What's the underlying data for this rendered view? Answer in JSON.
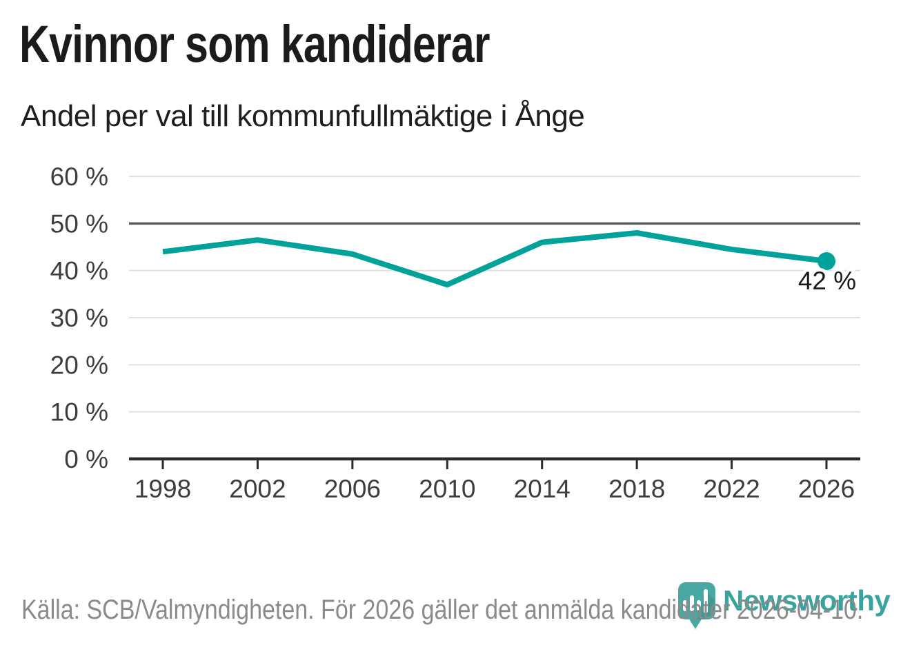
{
  "title": "Kvinnor som kandiderar",
  "subtitle": "Andel per val till kommunfullmäktige i Ånge",
  "source_note": "Källa: SCB/Valmyndigheten. För 2026 gäller det anmälda kandidater 2026-04-10.",
  "branding": {
    "name": "Newsworthy",
    "icon": "newsworthy-pin-barchart-icon",
    "color": "#3aa39d"
  },
  "chart_data": {
    "type": "line",
    "title": "Kvinnor som kandiderar",
    "subtitle": "Andel per val till kommunfullmäktige i Ånge",
    "x": [
      1998,
      2002,
      2006,
      2010,
      2014,
      2018,
      2022,
      2026
    ],
    "xtick_labels": [
      "1998",
      "2002",
      "2006",
      "2010",
      "2014",
      "2018",
      "2022",
      "2026"
    ],
    "values": [
      44,
      46.5,
      43.5,
      37,
      46,
      48,
      44.5,
      42
    ],
    "unit": "%",
    "ylim": [
      0,
      60
    ],
    "yticks": [
      0,
      10,
      20,
      30,
      40,
      50,
      60
    ],
    "ytick_labels": [
      "0 %",
      "10 %",
      "20 %",
      "30 %",
      "40 %",
      "50 %",
      "60 %"
    ],
    "grid": "horizontal",
    "reference_gridline": 50,
    "end_point_label": "42 %",
    "line_color": "#00a29a",
    "legend": "none"
  }
}
